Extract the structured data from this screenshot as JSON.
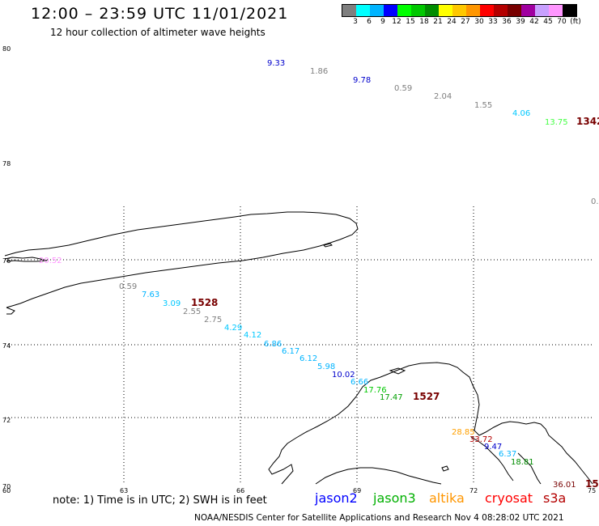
{
  "title": "12:00 – 23:59 UTC 11/01/2021",
  "subtitle": "12 hour collection of altimeter wave heights",
  "color_scale": {
    "colors": [
      "#7f7f7f",
      "#00ffff",
      "#00b4ff",
      "#0000ff",
      "#00ff00",
      "#00c800",
      "#008c00",
      "#ffff00",
      "#ffc800",
      "#ff9600",
      "#ff0000",
      "#b40000",
      "#780000",
      "#a000a0",
      "#c8a0ff",
      "#ff96ff",
      "#000000"
    ],
    "labels": [
      "3",
      "6",
      "9",
      "12",
      "15",
      "18",
      "21",
      "24",
      "27",
      "30",
      "33",
      "36",
      "39",
      "42",
      "45",
      "70",
      "(ft)"
    ]
  },
  "axes": {
    "lat_labels": [
      "80",
      "78",
      "76",
      "74",
      "72",
      "70"
    ],
    "lon_labels": [
      "60",
      "63",
      "66",
      "69",
      "72",
      "75"
    ]
  },
  "observations": [
    {
      "v": "9.33",
      "c": "#0000cc"
    },
    {
      "v": "1.86",
      "c": "#7f7f7f"
    },
    {
      "v": "9.78",
      "c": "#0000cc"
    },
    {
      "v": "0.59",
      "c": "#7f7f7f"
    },
    {
      "v": "2.04",
      "c": "#7f7f7f"
    },
    {
      "v": "1.55",
      "c": "#7f7f7f"
    },
    {
      "v": "4.06",
      "c": "#00c8ff"
    },
    {
      "v": "13.75",
      "c": "#44ff44"
    },
    {
      "v": "1342",
      "c": "#780000"
    },
    {
      "v": "0.",
      "c": "#7f7f7f"
    },
    {
      "v": "20.52",
      "c": "#ff96ff"
    },
    {
      "v": "0.59",
      "c": "#7f7f7f"
    },
    {
      "v": "7.63",
      "c": "#00b4ff"
    },
    {
      "v": "3.09",
      "c": "#00c8ff"
    },
    {
      "v": "1528",
      "c": "#780000"
    },
    {
      "v": "2.55",
      "c": "#7f7f7f"
    },
    {
      "v": "2.75",
      "c": "#7f7f7f"
    },
    {
      "v": "4.29",
      "c": "#00c8ff"
    },
    {
      "v": "4.12",
      "c": "#00c8ff"
    },
    {
      "v": "6.86",
      "c": "#00b4ff"
    },
    {
      "v": "6.17",
      "c": "#00b4ff"
    },
    {
      "v": "6.12",
      "c": "#00b4ff"
    },
    {
      "v": "5.98",
      "c": "#00b4ff"
    },
    {
      "v": "10.02",
      "c": "#0000cc"
    },
    {
      "v": "6.66",
      "c": "#00b4ff"
    },
    {
      "v": "17.76",
      "c": "#00c800"
    },
    {
      "v": "17.47",
      "c": "#00a000"
    },
    {
      "v": "1527",
      "c": "#780000"
    },
    {
      "v": "28.85",
      "c": "#ffa000"
    },
    {
      "v": "33.72",
      "c": "#b40000"
    },
    {
      "v": "9.47",
      "c": "#0000cc"
    },
    {
      "v": "6.37",
      "c": "#00b4ff"
    },
    {
      "v": "18.81",
      "c": "#008c00"
    },
    {
      "v": "36.01",
      "c": "#780000"
    },
    {
      "v": "15",
      "c": "#780000"
    }
  ],
  "note": "note: 1) Time is in UTC; 2) SWH is in feet",
  "missions": [
    {
      "name": "jason2",
      "color": "#0000ff"
    },
    {
      "name": "jason3",
      "color": "#00b000"
    },
    {
      "name": "altika",
      "color": "#ff9600"
    },
    {
      "name": "cryosat",
      "color": "#ff0000"
    },
    {
      "name": "s3a",
      "color": "#b40000"
    }
  ],
  "footer": "NOAA/NESDIS Center for Satellite Applications and Research    Nov  4 08:28:02 UTC 2021"
}
